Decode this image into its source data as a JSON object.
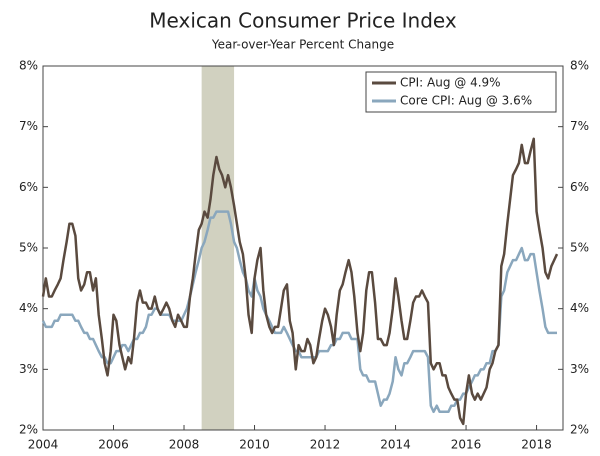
{
  "chart_data": {
    "type": "line",
    "title": "Mexican Consumer Price Index",
    "subtitle": "Year-over-Year Percent Change",
    "x": [
      2004,
      2004.08,
      2004.17,
      2004.25,
      2004.33,
      2004.42,
      2004.5,
      2004.58,
      2004.67,
      2004.75,
      2004.83,
      2004.92,
      2005,
      2005.08,
      2005.17,
      2005.25,
      2005.33,
      2005.42,
      2005.5,
      2005.58,
      2005.67,
      2005.75,
      2005.83,
      2005.92,
      2006,
      2006.08,
      2006.17,
      2006.25,
      2006.33,
      2006.42,
      2006.5,
      2006.58,
      2006.67,
      2006.75,
      2006.83,
      2006.92,
      2007,
      2007.08,
      2007.17,
      2007.25,
      2007.33,
      2007.42,
      2007.5,
      2007.58,
      2007.67,
      2007.75,
      2007.83,
      2007.92,
      2008,
      2008.08,
      2008.17,
      2008.25,
      2008.33,
      2008.42,
      2008.5,
      2008.58,
      2008.67,
      2008.75,
      2008.83,
      2008.92,
      2009,
      2009.08,
      2009.17,
      2009.25,
      2009.33,
      2009.42,
      2009.5,
      2009.58,
      2009.67,
      2009.75,
      2009.83,
      2009.92,
      2010,
      2010.08,
      2010.17,
      2010.25,
      2010.33,
      2010.42,
      2010.5,
      2010.58,
      2010.67,
      2010.75,
      2010.83,
      2010.92,
      2011,
      2011.08,
      2011.17,
      2011.25,
      2011.33,
      2011.42,
      2011.5,
      2011.58,
      2011.67,
      2011.75,
      2011.83,
      2011.92,
      2012,
      2012.08,
      2012.17,
      2012.25,
      2012.33,
      2012.42,
      2012.5,
      2012.58,
      2012.67,
      2012.75,
      2012.83,
      2012.92,
      2013,
      2013.08,
      2013.17,
      2013.25,
      2013.33,
      2013.42,
      2013.5,
      2013.58,
      2013.67,
      2013.75,
      2013.83,
      2013.92,
      2014,
      2014.08,
      2014.17,
      2014.25,
      2014.33,
      2014.42,
      2014.5,
      2014.58,
      2014.67,
      2014.75,
      2014.83,
      2014.92,
      2015,
      2015.08,
      2015.17,
      2015.25,
      2015.33,
      2015.42,
      2015.5,
      2015.58,
      2015.67,
      2015.75,
      2015.83,
      2015.92,
      2016,
      2016.08,
      2016.17,
      2016.25,
      2016.33,
      2016.42,
      2016.5,
      2016.58,
      2016.67,
      2016.75,
      2016.83,
      2016.92,
      2017,
      2017.08,
      2017.17,
      2017.25,
      2017.33,
      2017.42,
      2017.5,
      2017.58,
      2017.67,
      2017.75,
      2017.83,
      2017.92,
      2018,
      2018.08,
      2018.17,
      2018.25,
      2018.33,
      2018.42,
      2018.5,
      2018.58
    ],
    "series": [
      {
        "name": "CPI: Aug @ 4.9%",
        "color": "#5a4a3f",
        "values": [
          4.2,
          4.5,
          4.2,
          4.2,
          4.3,
          4.4,
          4.5,
          4.8,
          5.1,
          5.4,
          5.4,
          5.2,
          4.5,
          4.3,
          4.4,
          4.6,
          4.6,
          4.3,
          4.5,
          3.9,
          3.5,
          3.1,
          2.9,
          3.3,
          3.9,
          3.8,
          3.4,
          3.2,
          3.0,
          3.2,
          3.1,
          3.5,
          4.1,
          4.3,
          4.1,
          4.1,
          4.0,
          4.0,
          4.2,
          4.0,
          3.9,
          4.0,
          4.1,
          4.0,
          3.8,
          3.7,
          3.9,
          3.8,
          3.7,
          3.7,
          4.2,
          4.5,
          4.9,
          5.3,
          5.4,
          5.6,
          5.5,
          5.8,
          6.2,
          6.5,
          6.3,
          6.2,
          6.0,
          6.2,
          6.0,
          5.7,
          5.4,
          5.1,
          4.9,
          4.5,
          3.9,
          3.6,
          4.5,
          4.8,
          5.0,
          4.3,
          3.9,
          3.7,
          3.6,
          3.7,
          3.7,
          4.0,
          4.3,
          4.4,
          3.8,
          3.6,
          3.0,
          3.4,
          3.3,
          3.3,
          3.5,
          3.4,
          3.1,
          3.2,
          3.5,
          3.8,
          4.0,
          3.9,
          3.7,
          3.4,
          3.9,
          4.3,
          4.4,
          4.6,
          4.8,
          4.6,
          4.2,
          3.6,
          3.3,
          3.6,
          4.3,
          4.6,
          4.6,
          4.1,
          3.5,
          3.5,
          3.4,
          3.4,
          3.6,
          4.0,
          4.5,
          4.2,
          3.8,
          3.5,
          3.5,
          3.8,
          4.1,
          4.2,
          4.2,
          4.3,
          4.2,
          4.1,
          3.1,
          3.0,
          3.1,
          3.1,
          2.9,
          2.9,
          2.7,
          2.6,
          2.5,
          2.5,
          2.2,
          2.1,
          2.6,
          2.9,
          2.6,
          2.5,
          2.6,
          2.5,
          2.6,
          2.7,
          3.0,
          3.1,
          3.3,
          3.4,
          4.7,
          4.9,
          5.4,
          5.8,
          6.2,
          6.3,
          6.4,
          6.7,
          6.4,
          6.4,
          6.6,
          6.8,
          5.6,
          5.3,
          5.0,
          4.6,
          4.5,
          4.7,
          4.8,
          4.9
        ]
      },
      {
        "name": "Core CPI: Aug @ 3.6%",
        "color": "#8aa7bd",
        "values": [
          3.8,
          3.7,
          3.7,
          3.7,
          3.8,
          3.8,
          3.9,
          3.9,
          3.9,
          3.9,
          3.9,
          3.8,
          3.8,
          3.7,
          3.6,
          3.6,
          3.5,
          3.5,
          3.4,
          3.3,
          3.2,
          3.2,
          3.1,
          3.1,
          3.2,
          3.3,
          3.3,
          3.4,
          3.4,
          3.3,
          3.4,
          3.5,
          3.5,
          3.6,
          3.6,
          3.7,
          3.9,
          3.9,
          4.0,
          4.0,
          3.9,
          3.9,
          3.9,
          3.9,
          3.8,
          3.8,
          3.8,
          3.8,
          3.9,
          4.0,
          4.2,
          4.4,
          4.6,
          4.8,
          5.0,
          5.1,
          5.3,
          5.5,
          5.5,
          5.6,
          5.6,
          5.6,
          5.6,
          5.6,
          5.4,
          5.1,
          5.0,
          4.8,
          4.6,
          4.5,
          4.3,
          4.2,
          4.5,
          4.3,
          4.2,
          4.0,
          3.9,
          3.8,
          3.7,
          3.6,
          3.6,
          3.6,
          3.7,
          3.6,
          3.5,
          3.4,
          3.3,
          3.3,
          3.2,
          3.2,
          3.2,
          3.2,
          3.2,
          3.2,
          3.3,
          3.3,
          3.3,
          3.3,
          3.4,
          3.4,
          3.5,
          3.5,
          3.6,
          3.6,
          3.6,
          3.5,
          3.5,
          3.5,
          3.0,
          2.9,
          2.9,
          2.8,
          2.8,
          2.8,
          2.6,
          2.4,
          2.5,
          2.5,
          2.6,
          2.8,
          3.2,
          3.0,
          2.9,
          3.1,
          3.1,
          3.2,
          3.3,
          3.3,
          3.3,
          3.3,
          3.3,
          3.2,
          2.4,
          2.3,
          2.4,
          2.3,
          2.3,
          2.3,
          2.3,
          2.4,
          2.4,
          2.5,
          2.5,
          2.6,
          2.6,
          2.7,
          2.8,
          2.9,
          2.9,
          3.0,
          3.0,
          3.1,
          3.1,
          3.3,
          3.3,
          3.4,
          4.2,
          4.3,
          4.6,
          4.7,
          4.8,
          4.8,
          4.9,
          5.0,
          4.8,
          4.8,
          4.9,
          4.9,
          4.6,
          4.3,
          4.0,
          3.7,
          3.6,
          3.6,
          3.6,
          3.6
        ]
      }
    ],
    "shade": {
      "x": [
        2008.5,
        2009.42
      ],
      "color": "#d1d1c0"
    },
    "xlim": [
      2004,
      2018.75
    ],
    "xticks": [
      2004,
      2006,
      2008,
      2010,
      2012,
      2014,
      2016,
      2018
    ],
    "ylim": [
      2,
      8
    ],
    "yticks": [
      {
        "value": 2,
        "label": "2%"
      },
      {
        "value": 3,
        "label": "3%"
      },
      {
        "value": 4,
        "label": "4%"
      },
      {
        "value": 5,
        "label": "5%"
      },
      {
        "value": 6,
        "label": "6%"
      },
      {
        "value": 7,
        "label": "7%"
      },
      {
        "value": 8,
        "label": "8%"
      }
    ],
    "y2lim": [
      2,
      8
    ],
    "y2ticks": [
      {
        "value": 2,
        "label": "2%"
      },
      {
        "value": 3,
        "label": "3%"
      },
      {
        "value": 4,
        "label": "4%"
      },
      {
        "value": 5,
        "label": "5%"
      },
      {
        "value": 6,
        "label": "6%"
      },
      {
        "value": 7,
        "label": "7%"
      },
      {
        "value": 8,
        "label": "8%"
      }
    ],
    "legend": "top-right"
  }
}
